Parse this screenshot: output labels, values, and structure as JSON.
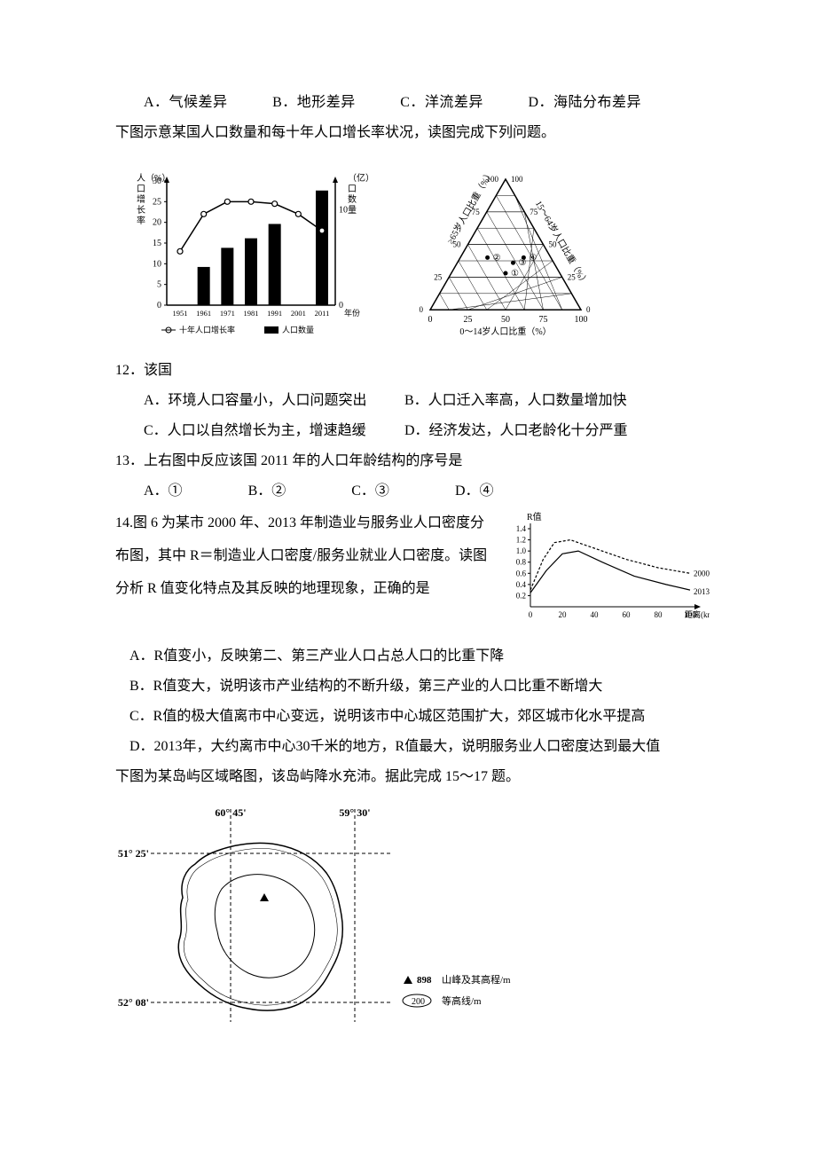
{
  "topOptions": {
    "a": "A．气候差异",
    "b": "B．地形差异",
    "c": "C．洋流差异",
    "d": "D．海陆分布差异"
  },
  "intro1": "下图示意某国人口数量和每十年人口增长率状况，读图完成下列问题。",
  "chart1": {
    "type": "bar+line",
    "yLeftLabelLines": [
      "人（%）",
      "口",
      "增",
      "长",
      "率"
    ],
    "yRightLabelLines": [
      "（亿）人",
      "口",
      "数",
      "量"
    ],
    "yLeftTicks": [
      30,
      25,
      20,
      15,
      10,
      5,
      0
    ],
    "yRightTicks": [
      10,
      0
    ],
    "years": [
      "1951",
      "1961",
      "1971",
      "1981",
      "1991",
      "2001",
      "2011"
    ],
    "xLabel": "年份",
    "legendLeft": "十年人口增长率",
    "legendRight": "人口数量",
    "barValues": [
      0,
      4,
      6,
      7,
      8.5,
      0,
      12
    ],
    "lineValues": [
      13,
      22,
      25,
      25,
      24.5,
      22,
      18
    ],
    "barColor": "#000000",
    "lineColor": "#000000",
    "markerColor": "#ffffff",
    "markerStroke": "#000000",
    "bgColor": "#ffffff",
    "axisColor": "#000000",
    "fontsize_axis": 10
  },
  "chart2": {
    "type": "ternary",
    "bottomLabel": "0～14岁人口比重（%）",
    "rightLabel": "15～64岁人口比重（%）",
    "leftLabel": "≥65岁人口比重（%）",
    "ticks": [
      0,
      25,
      50,
      75,
      100
    ],
    "points": [
      {
        "id": "①",
        "u": 50,
        "v": 35
      },
      {
        "id": "②",
        "u": 38,
        "v": 50
      },
      {
        "id": "③",
        "u": 55,
        "v": 45
      },
      {
        "id": "④",
        "u": 62,
        "v": 50
      }
    ],
    "lineColor": "#000000",
    "bgColor": "#ffffff",
    "fontsize": 10
  },
  "q12": {
    "num": "12．该国",
    "a": "A．环境人口容量小，人口问题突出",
    "b": "B．人口迁入率高，人口数量增加快",
    "c": "C．人口以自然增长为主，增速趋缓",
    "d": "D．经济发达，人口老龄化十分严重"
  },
  "q13": {
    "text": "13．上右图中反应该国 2011 年的人口年龄结构的序号是",
    "a": "A．①",
    "b": "B．②",
    "c": "C．③",
    "d": "D．④"
  },
  "q14": {
    "intro1": "14.图 6 为某市 2000 年、2013 年制造业与服务业人口密度分",
    "intro2": "布图，其中 R＝制造业人口密度/服务业就业人口密度。读图",
    "intro3": "分析 R 值变化特点及其反映的地理现象，正确的是",
    "a": "A．R值变小，反映第二、第三产业人口占总人口的比重下降",
    "b": "B．R值变大，说明该市产业结构的不断升级，第三产业的人口比重不断增大",
    "c": "C．R值的极大值离市中心变远，说明该市中心城区范围扩大，郊区城市化水平提高",
    "d": "D．2013年，大约离市中心30千米的地方，R值最大，说明服务业人口密度达到最大值"
  },
  "chart3": {
    "type": "line",
    "yLabel": "R值",
    "yTicks": [
      0.2,
      0.4,
      0.6,
      0.8,
      1.0,
      1.2,
      1.4
    ],
    "xTicks": [
      0,
      20,
      40,
      60,
      80,
      100
    ],
    "xLabel": "距离(km)",
    "series": [
      {
        "name": "2000年",
        "dash": true,
        "values": [
          [
            0,
            0.3
          ],
          [
            8,
            0.85
          ],
          [
            15,
            1.15
          ],
          [
            25,
            1.2
          ],
          [
            40,
            1.05
          ],
          [
            60,
            0.85
          ],
          [
            80,
            0.7
          ],
          [
            100,
            0.6
          ]
        ]
      },
      {
        "name": "2013年",
        "dash": false,
        "values": [
          [
            0,
            0.25
          ],
          [
            10,
            0.65
          ],
          [
            20,
            0.95
          ],
          [
            30,
            1.0
          ],
          [
            45,
            0.8
          ],
          [
            65,
            0.55
          ],
          [
            85,
            0.4
          ],
          [
            100,
            0.3
          ]
        ]
      }
    ],
    "lineColor": "#000000",
    "bgColor": "#ffffff",
    "fontsize": 9
  },
  "intro2": "下图为某岛屿区域略图，该岛屿降水充沛。据此完成 15～17 题。",
  "map": {
    "type": "map",
    "lon1": "60° 45'",
    "lon2": "59° 30'",
    "lat1": "51° 25'",
    "lat2": "52° 08'",
    "peak": "898",
    "contour": "200",
    "legendPeak": "山峰及其高程/m",
    "legendContour": "等高线/m",
    "lineColor": "#000000",
    "bgColor": "#ffffff"
  }
}
